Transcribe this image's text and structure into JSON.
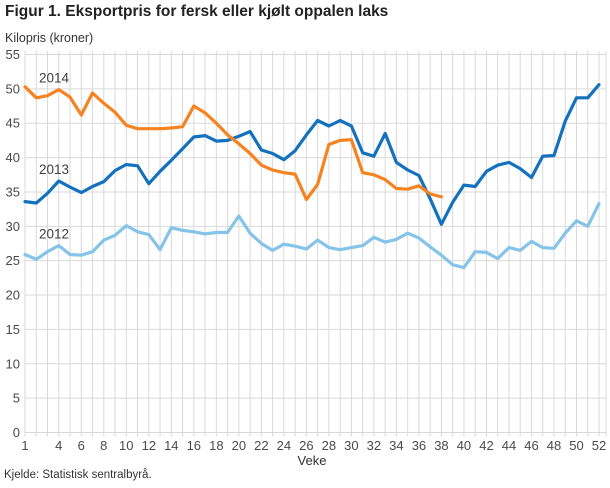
{
  "header": {
    "title": "Figur 1. Eksportpris for fersk eller kjølt oppalen laks",
    "subtitle": "Kilopris (kroner)"
  },
  "source": "Kjelde: Statistisk sentralbyrå.",
  "chart_data": {
    "type": "line",
    "title": "Figur 1. Eksportpris for fersk eller kjølt oppalen laks",
    "ylabel": "Kilopris (kroner)",
    "xlabel": "Veke",
    "xlim": [
      1,
      52
    ],
    "ylim": [
      0,
      55
    ],
    "grid": true,
    "legend_position": "inline-left-labels",
    "xticks": [
      1,
      4,
      6,
      8,
      10,
      12,
      14,
      16,
      18,
      20,
      22,
      24,
      26,
      28,
      30,
      32,
      34,
      36,
      38,
      40,
      42,
      44,
      46,
      48,
      50,
      52
    ],
    "yticks": [
      0,
      5,
      10,
      15,
      20,
      25,
      30,
      35,
      40,
      45,
      50,
      55
    ],
    "x_unit": "week",
    "series": [
      {
        "name": "2014",
        "color": "#f68220",
        "start_week": 1,
        "values": [
          50.3,
          48.7,
          49.0,
          49.9,
          48.8,
          46.2,
          49.4,
          47.9,
          46.6,
          44.7,
          44.2,
          44.2,
          44.2,
          44.3,
          44.5,
          47.5,
          46.5,
          45.0,
          43.3,
          42.0,
          40.6,
          38.9,
          38.2,
          37.8,
          37.6,
          33.9,
          36.1,
          41.9,
          42.5,
          42.6,
          37.8,
          37.5,
          36.8,
          35.5,
          35.4,
          35.9,
          34.7,
          34.3
        ]
      },
      {
        "name": "2013",
        "color": "#1371be",
        "start_week": 1,
        "values": [
          33.6,
          33.4,
          34.8,
          36.6,
          35.7,
          34.9,
          35.8,
          36.5,
          38.1,
          39.0,
          38.8,
          36.2,
          38.0,
          39.6,
          41.3,
          43.0,
          43.2,
          42.4,
          42.5,
          43.1,
          43.8,
          41.1,
          40.6,
          39.7,
          41.0,
          43.3,
          45.4,
          44.6,
          45.4,
          44.6,
          40.7,
          40.2,
          43.5,
          39.3,
          38.2,
          37.4,
          34.0,
          30.3,
          33.5,
          36.0,
          35.8,
          38.0,
          38.9,
          39.3,
          38.4,
          37.1,
          40.2,
          40.3,
          45.3,
          48.7,
          48.7,
          50.6
        ]
      },
      {
        "name": "2012",
        "color": "#85c3e8",
        "start_week": 1,
        "values": [
          25.9,
          25.2,
          26.3,
          27.2,
          25.9,
          25.8,
          26.3,
          28.0,
          28.7,
          30.1,
          29.2,
          28.8,
          26.6,
          29.8,
          29.4,
          29.2,
          28.9,
          29.1,
          29.1,
          31.5,
          29.0,
          27.5,
          26.5,
          27.4,
          27.1,
          26.7,
          28.0,
          26.9,
          26.6,
          26.9,
          27.2,
          28.4,
          27.7,
          28.1,
          29.0,
          28.3,
          27.0,
          25.8,
          24.4,
          24.0,
          26.3,
          26.2,
          25.3,
          26.9,
          26.5,
          27.8,
          26.9,
          26.8,
          29.0,
          30.8,
          30.0,
          33.3
        ]
      }
    ],
    "colors": {
      "grid": "#d9d9d9",
      "tick_text": "#4a4a4a",
      "inline_label_text": "#3f3f3f",
      "background": "#ffffff"
    }
  }
}
